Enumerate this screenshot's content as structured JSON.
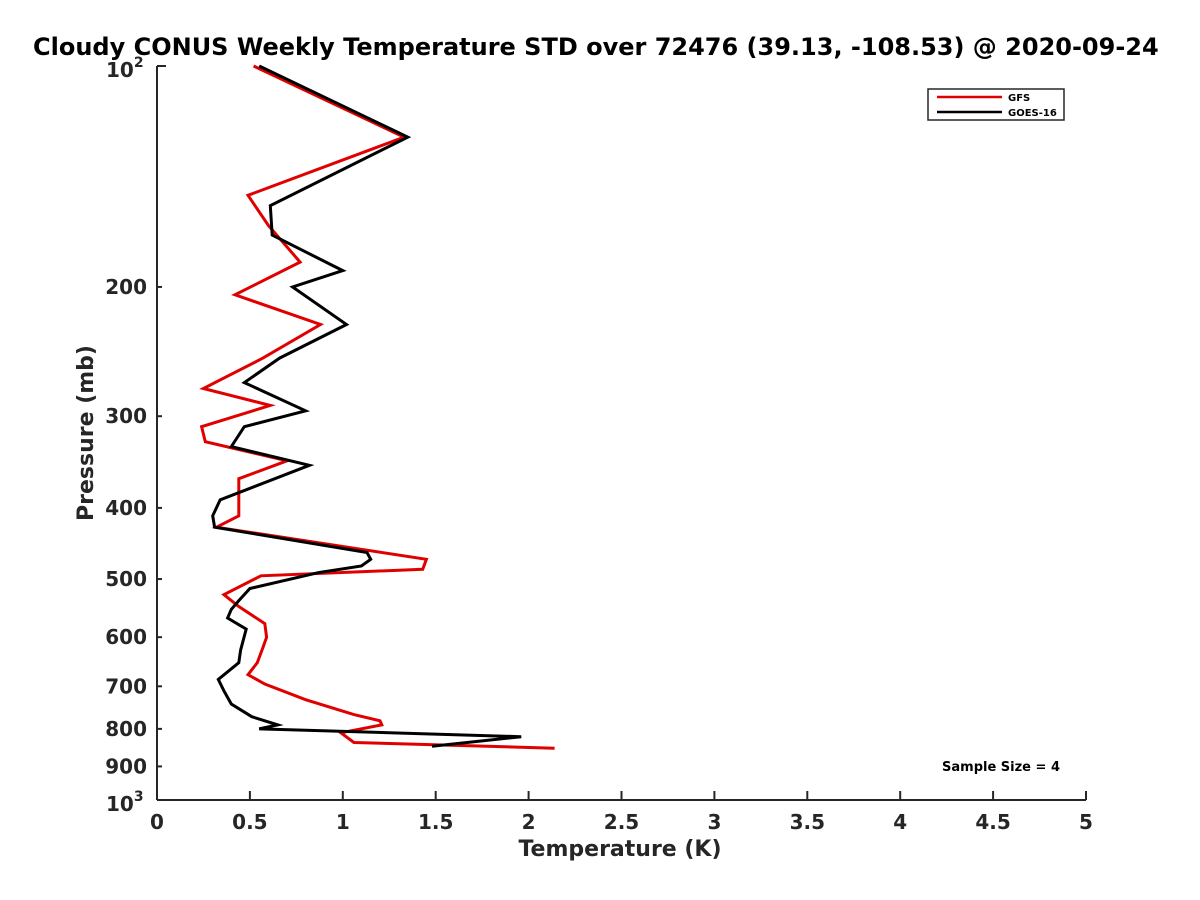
{
  "chart_data": {
    "type": "line",
    "title": "Cloudy CONUS Weekly Temperature STD over 72476 (39.13, -108.53) @ 2020-09-24",
    "xlabel": "Temperature (K)",
    "ylabel": "Pressure (mb)",
    "xlim": [
      0,
      5
    ],
    "ylim": [
      100,
      1000
    ],
    "y_scale": "log",
    "y_reversed": true,
    "x_ticks": [
      "0",
      "0.5",
      "1",
      "1.5",
      "2",
      "2.5",
      "3",
      "3.5",
      "4",
      "4.5",
      "5"
    ],
    "y_ticks": [
      {
        "value": 100,
        "base": "10",
        "exp": "2"
      },
      {
        "value": 200,
        "label": "200"
      },
      {
        "value": 300,
        "label": "300"
      },
      {
        "value": 400,
        "label": "400"
      },
      {
        "value": 500,
        "label": "500"
      },
      {
        "value": 600,
        "label": "600"
      },
      {
        "value": 700,
        "label": "700"
      },
      {
        "value": 800,
        "label": "800"
      },
      {
        "value": 900,
        "label": "900"
      },
      {
        "value": 1000,
        "base": "10",
        "exp": "3"
      }
    ],
    "grid": false,
    "legend_position": "top-right",
    "annotation": "Sample Size = 4",
    "series": [
      {
        "name": "GFS",
        "color": "#e00000",
        "points": [
          [
            0.52,
            100
          ],
          [
            1.33,
            125
          ],
          [
            0.49,
            150
          ],
          [
            0.6,
            165
          ],
          [
            0.77,
            185
          ],
          [
            0.42,
            205
          ],
          [
            0.88,
            225
          ],
          [
            0.57,
            250
          ],
          [
            0.25,
            275
          ],
          [
            0.61,
            290
          ],
          [
            0.24,
            310
          ],
          [
            0.26,
            325
          ],
          [
            0.7,
            345
          ],
          [
            0.44,
            365
          ],
          [
            0.44,
            390
          ],
          [
            0.44,
            410
          ],
          [
            0.32,
            425
          ],
          [
            1.45,
            470
          ],
          [
            1.43,
            485
          ],
          [
            0.56,
            495
          ],
          [
            0.36,
            525
          ],
          [
            0.44,
            545
          ],
          [
            0.58,
            575
          ],
          [
            0.59,
            600
          ],
          [
            0.57,
            620
          ],
          [
            0.54,
            650
          ],
          [
            0.49,
            675
          ],
          [
            0.58,
            695
          ],
          [
            0.8,
            730
          ],
          [
            1.06,
            765
          ],
          [
            1.2,
            780
          ],
          [
            1.21,
            790
          ],
          [
            0.99,
            810
          ],
          [
            1.06,
            835
          ],
          [
            2.14,
            850
          ]
        ]
      },
      {
        "name": "GOES-16",
        "color": "#000000",
        "points": [
          [
            0.55,
            100
          ],
          [
            1.35,
            125
          ],
          [
            0.61,
            155
          ],
          [
            0.62,
            170
          ],
          [
            1.0,
            190
          ],
          [
            0.73,
            200
          ],
          [
            1.02,
            225
          ],
          [
            0.66,
            250
          ],
          [
            0.47,
            270
          ],
          [
            0.8,
            295
          ],
          [
            0.47,
            310
          ],
          [
            0.4,
            330
          ],
          [
            0.82,
            350
          ],
          [
            0.34,
            390
          ],
          [
            0.3,
            410
          ],
          [
            0.31,
            425
          ],
          [
            1.13,
            460
          ],
          [
            1.15,
            470
          ],
          [
            1.1,
            480
          ],
          [
            0.87,
            490
          ],
          [
            0.5,
            515
          ],
          [
            0.44,
            535
          ],
          [
            0.4,
            550
          ],
          [
            0.38,
            565
          ],
          [
            0.48,
            585
          ],
          [
            0.45,
            625
          ],
          [
            0.44,
            650
          ],
          [
            0.33,
            685
          ],
          [
            0.36,
            710
          ],
          [
            0.4,
            740
          ],
          [
            0.51,
            770
          ],
          [
            0.65,
            790
          ],
          [
            0.55,
            800
          ],
          [
            1.96,
            820
          ],
          [
            1.48,
            845
          ]
        ]
      }
    ]
  }
}
